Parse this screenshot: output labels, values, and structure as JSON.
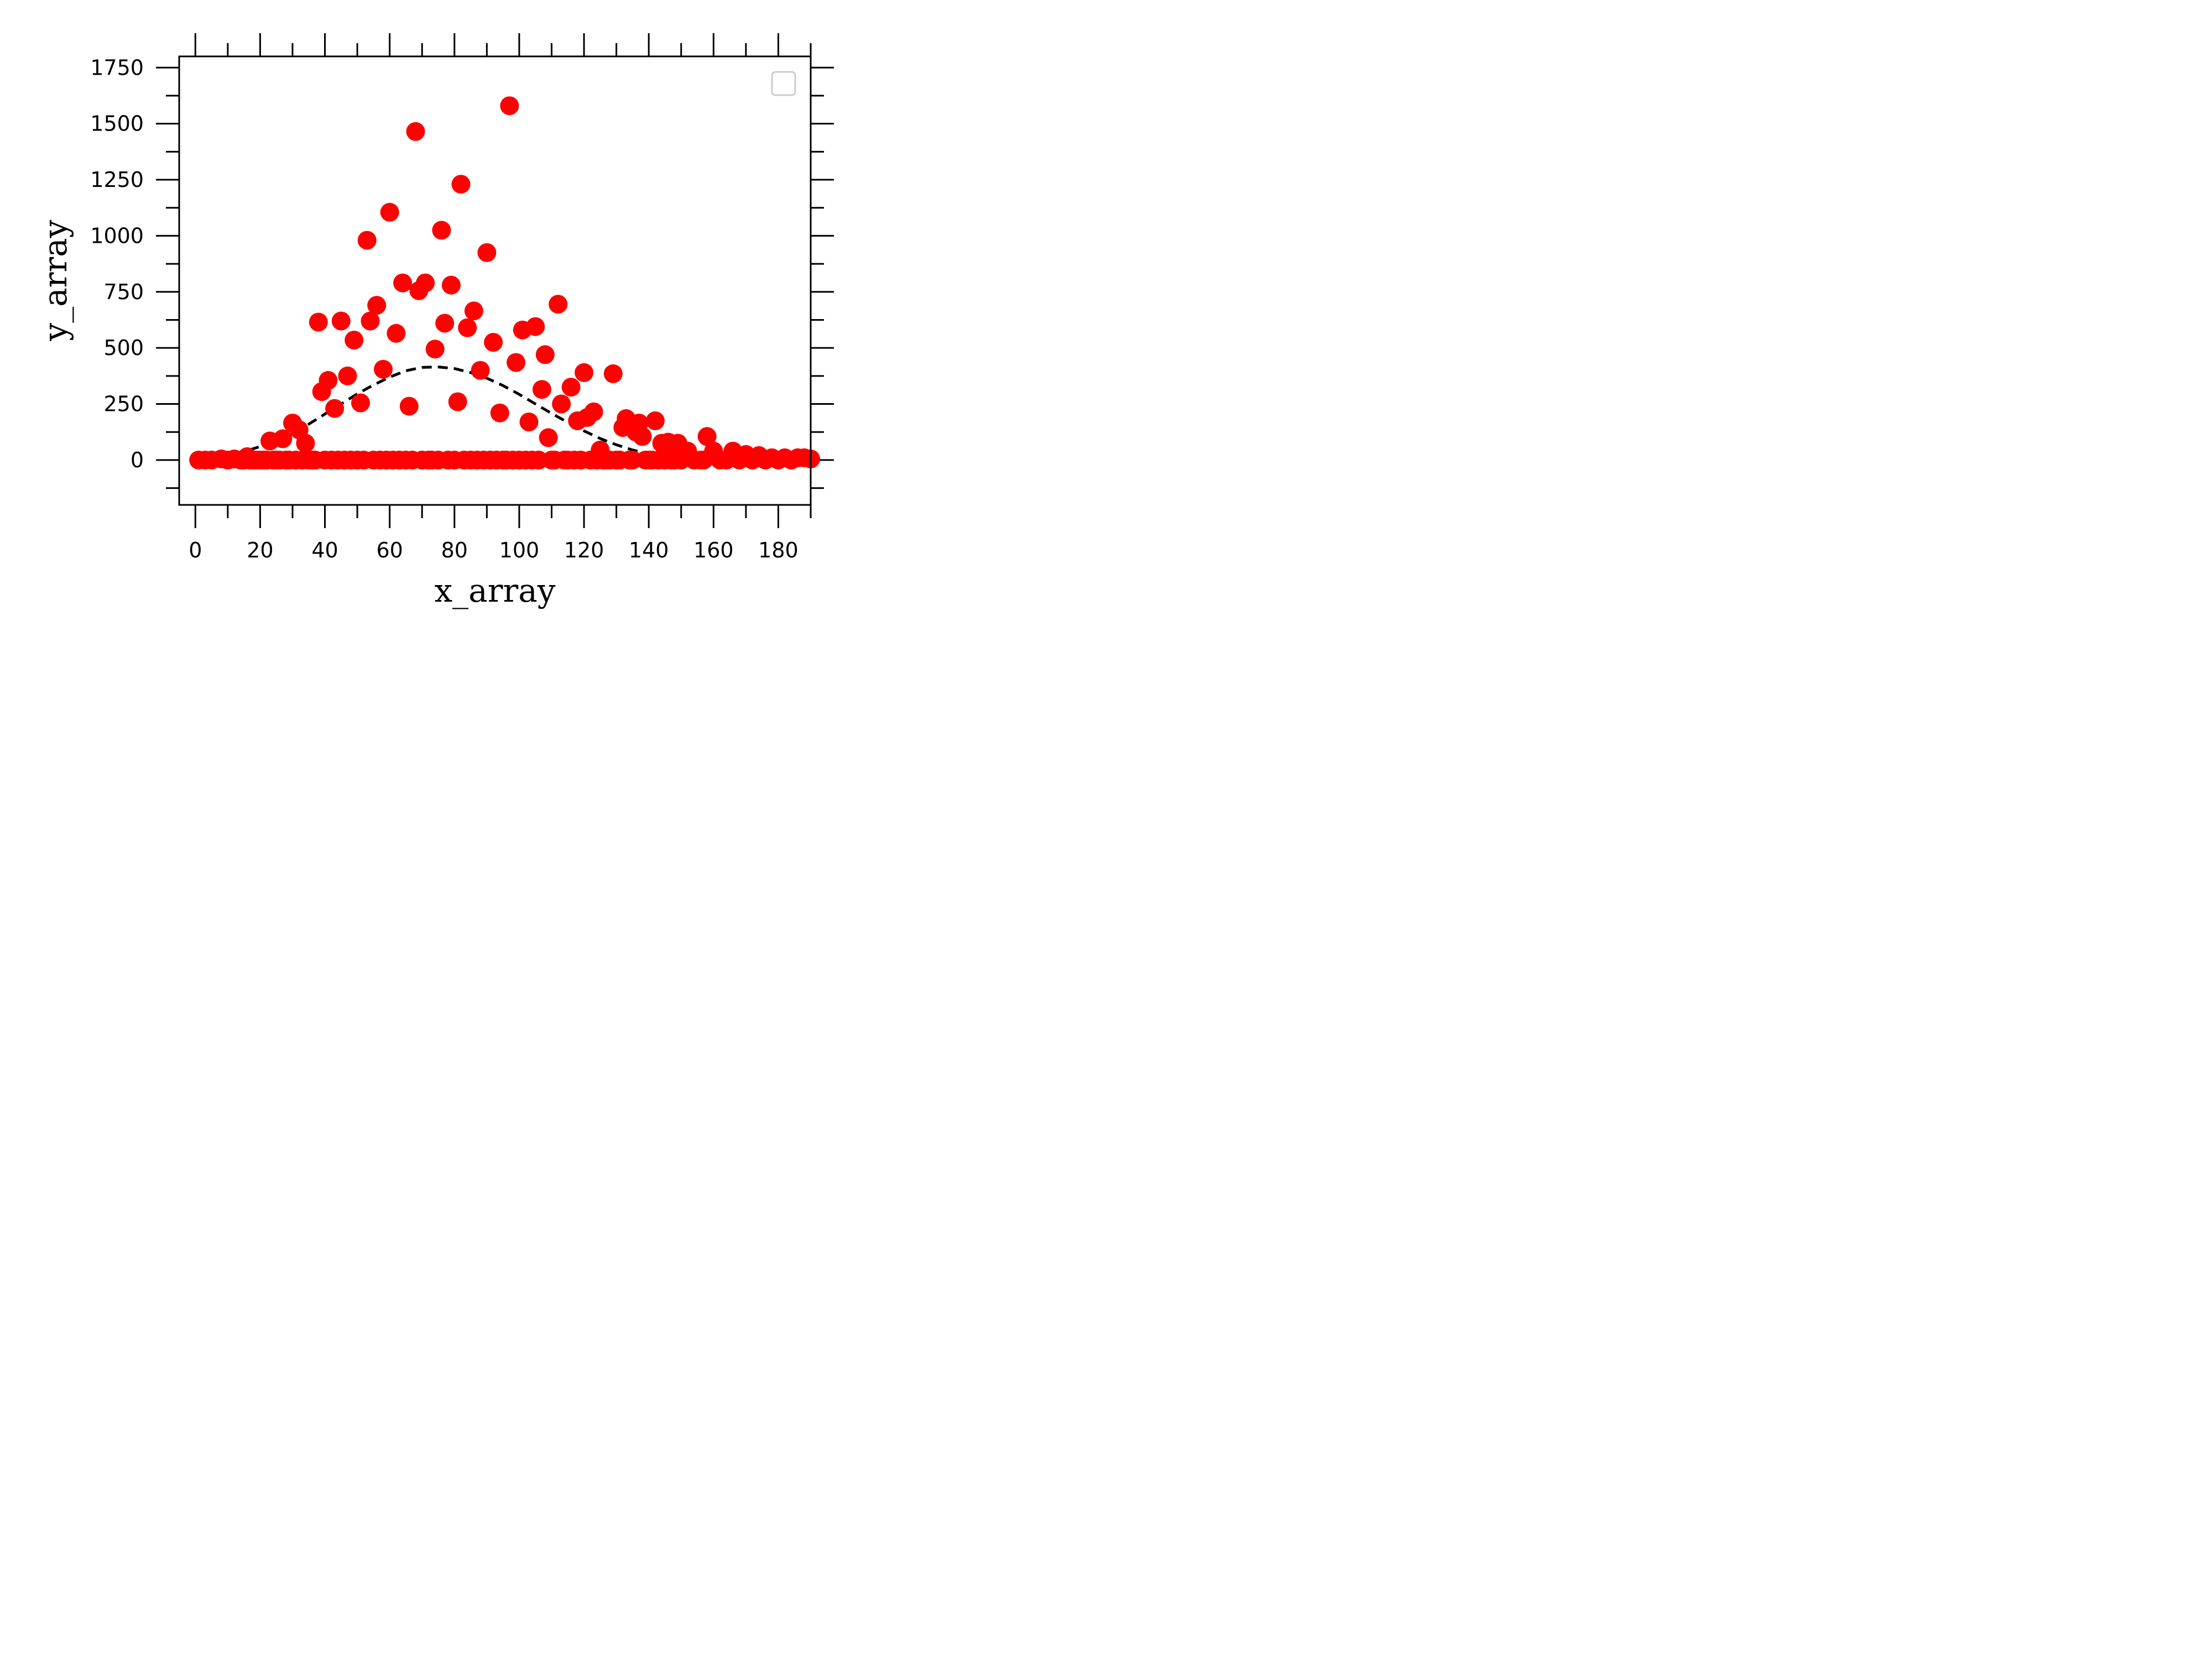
{
  "chart_data": {
    "type": "scatter",
    "xlabel": "x_array",
    "ylabel": "y_array",
    "xlim": [
      -5,
      190
    ],
    "ylim": [
      -200,
      1800
    ],
    "x_ticks": [
      0,
      20,
      40,
      60,
      80,
      100,
      120,
      140,
      160,
      180
    ],
    "y_ticks": [
      0,
      250,
      500,
      750,
      1000,
      1250,
      1500,
      1750
    ],
    "legend": {
      "placement": "top-right",
      "entries": []
    },
    "colors": {
      "points": "#ff0000",
      "curve": "#000000",
      "legend_border": "#cccccc"
    },
    "series": [
      {
        "style": "scatter",
        "x": [
          1,
          3,
          5,
          8,
          10,
          12,
          14,
          15,
          16,
          17,
          18,
          19,
          20,
          21,
          22,
          23,
          24,
          25,
          26,
          27,
          28,
          29,
          30,
          31,
          32,
          33,
          34,
          35,
          36,
          37,
          38,
          39,
          40,
          41,
          42,
          43,
          44,
          45,
          46,
          47,
          48,
          49,
          50,
          51,
          52,
          53,
          54,
          55,
          56,
          57,
          58,
          59,
          60,
          61,
          62,
          63,
          64,
          65,
          66,
          67,
          68,
          69,
          70,
          71,
          72,
          73,
          74,
          75,
          76,
          77,
          78,
          79,
          80,
          81,
          82,
          83,
          84,
          85,
          86,
          87,
          88,
          89,
          90,
          91,
          92,
          93,
          94,
          95,
          96,
          97,
          98,
          99,
          100,
          101,
          102,
          103,
          104,
          105,
          106,
          107,
          108,
          109,
          110,
          111,
          112,
          113,
          114,
          115,
          116,
          117,
          118,
          119,
          120,
          121,
          122,
          123,
          124,
          125,
          126,
          127,
          128,
          129,
          130,
          131,
          132,
          133,
          134,
          135,
          136,
          137,
          138,
          139,
          140,
          141,
          142,
          143,
          144,
          145,
          146,
          147,
          148,
          149,
          150,
          152,
          154,
          156,
          157,
          158,
          160,
          162,
          164,
          166,
          168,
          170,
          172,
          174,
          176,
          178,
          180,
          182,
          184,
          186,
          188,
          190
        ],
        "y": [
          0,
          0,
          0,
          5,
          0,
          5,
          0,
          0,
          15,
          0,
          0,
          0,
          0,
          0,
          0,
          85,
          0,
          0,
          0,
          95,
          0,
          0,
          165,
          0,
          135,
          0,
          75,
          0,
          0,
          0,
          615,
          305,
          0,
          355,
          0,
          230,
          0,
          620,
          0,
          375,
          0,
          535,
          0,
          255,
          0,
          980,
          620,
          0,
          690,
          0,
          405,
          0,
          1105,
          0,
          565,
          0,
          790,
          0,
          240,
          0,
          1465,
          755,
          0,
          790,
          0,
          0,
          495,
          0,
          1025,
          610,
          0,
          780,
          0,
          260,
          1230,
          0,
          590,
          0,
          665,
          0,
          400,
          0,
          925,
          0,
          525,
          0,
          210,
          0,
          0,
          1580,
          0,
          435,
          0,
          580,
          0,
          170,
          0,
          595,
          0,
          315,
          470,
          100,
          0,
          0,
          695,
          250,
          0,
          0,
          325,
          0,
          175,
          0,
          390,
          190,
          0,
          215,
          0,
          45,
          0,
          0,
          0,
          385,
          0,
          0,
          145,
          185,
          0,
          0,
          125,
          165,
          105,
          0,
          0,
          0,
          175,
          0,
          75,
          0,
          80,
          0,
          0,
          75,
          0,
          40,
          0,
          0,
          0,
          105,
          40,
          0,
          0,
          40,
          0,
          25,
          0,
          20,
          0,
          10,
          0,
          10,
          0,
          10,
          10,
          5
        ]
      },
      {
        "style": "dashed-line",
        "x": [
          2,
          5,
          10,
          15,
          20,
          25,
          30,
          35,
          40,
          45,
          50,
          55,
          60,
          65,
          70,
          75,
          80,
          85,
          90,
          95,
          100,
          105,
          110,
          115,
          120,
          125,
          130,
          135,
          140,
          145,
          150,
          155,
          160,
          165,
          170,
          175,
          180,
          185,
          190
        ],
        "y": [
          8,
          12,
          22,
          38,
          60,
          88,
          122,
          160,
          205,
          250,
          295,
          335,
          370,
          398,
          413,
          415,
          408,
          390,
          365,
          332,
          293,
          250,
          208,
          168,
          130,
          96,
          68,
          45,
          28,
          17,
          10,
          6,
          3,
          2,
          1,
          0,
          0,
          0,
          0
        ]
      }
    ]
  }
}
